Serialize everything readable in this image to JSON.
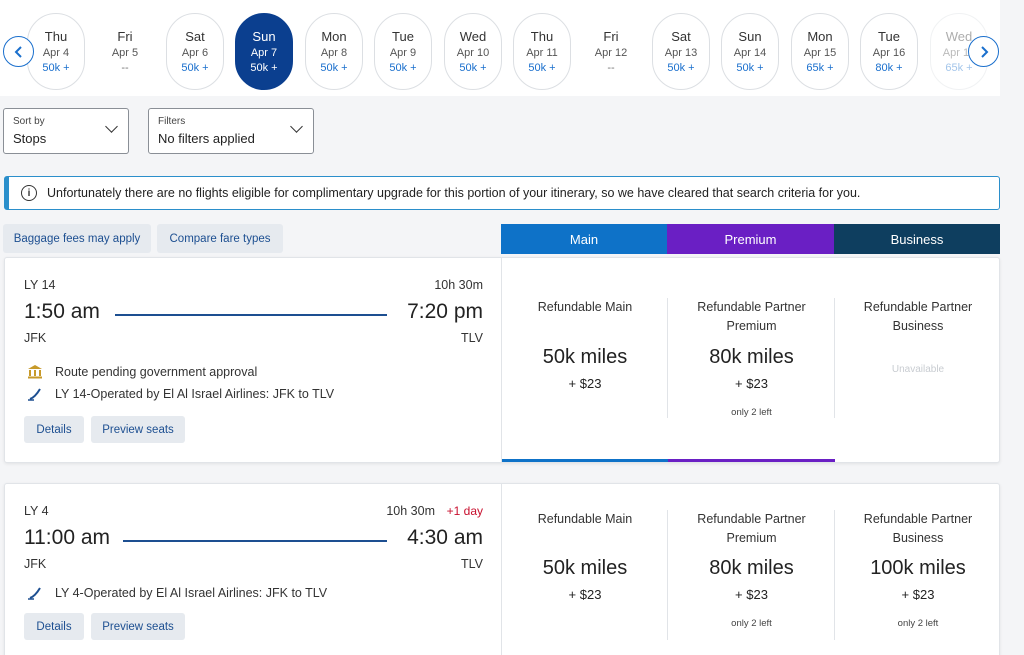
{
  "date_strip": {
    "days": [
      {
        "dow": "Thu",
        "date": "Apr 4",
        "price": "50k +"
      },
      {
        "dow": "Fri",
        "date": "Apr 5",
        "price": "--"
      },
      {
        "dow": "Sat",
        "date": "Apr 6",
        "price": "50k +"
      },
      {
        "dow": "Sun",
        "date": "Apr 7",
        "price": "50k +"
      },
      {
        "dow": "Mon",
        "date": "Apr 8",
        "price": "50k +"
      },
      {
        "dow": "Tue",
        "date": "Apr 9",
        "price": "50k +"
      },
      {
        "dow": "Wed",
        "date": "Apr 10",
        "price": "50k +"
      },
      {
        "dow": "Thu",
        "date": "Apr 11",
        "price": "50k +"
      },
      {
        "dow": "Fri",
        "date": "Apr 12",
        "price": "--"
      },
      {
        "dow": "Sat",
        "date": "Apr 13",
        "price": "50k +"
      },
      {
        "dow": "Sun",
        "date": "Apr 14",
        "price": "50k +"
      },
      {
        "dow": "Mon",
        "date": "Apr 15",
        "price": "65k +"
      },
      {
        "dow": "Tue",
        "date": "Apr 16",
        "price": "80k +"
      },
      {
        "dow": "Wed",
        "date": "Apr 17",
        "price": "65k +"
      }
    ],
    "prev_icon": "chevron-left-icon",
    "next_icon": "chevron-right-icon"
  },
  "sort": {
    "label": "Sort by",
    "value": "Stops"
  },
  "filters": {
    "label": "Filters",
    "value": "No filters applied"
  },
  "banner": {
    "icon": "info-icon",
    "text": "Unfortunately there are no flights eligible for complimentary upgrade for this portion of your itinerary, so we have cleared that search criteria for you."
  },
  "links": {
    "baggage": "Baggage fees may apply",
    "compare": "Compare fare types"
  },
  "tabs": [
    {
      "label": "Main",
      "color": "#0e72c8"
    },
    {
      "label": "Premium",
      "color": "#6a1fc4"
    },
    {
      "label": "Business",
      "color": "#0e3e5f"
    }
  ],
  "flights": [
    {
      "number": "LY 14",
      "duration": "10h 30m",
      "plus_day": "",
      "depart_time": "1:50 am",
      "arrive_time": "7:20 pm",
      "from": "JFK",
      "to": "TLV",
      "notice": "Route pending government approval",
      "operated_by": "LY 14-Operated by El Al Israel Airlines: JFK to TLV",
      "details_label": "Details",
      "seats_label": "Preview seats",
      "fares": [
        {
          "name": "Refundable Main",
          "miles": "50k miles",
          "tax": "+ $23",
          "left": "",
          "unavailable": ""
        },
        {
          "name": "Refundable Partner Premium",
          "miles": "80k miles",
          "tax": "+ $23",
          "left": "only 2 left",
          "unavailable": ""
        },
        {
          "name": "Refundable Partner Business",
          "miles": "",
          "tax": "",
          "left": "",
          "unavailable": "Unavailable"
        }
      ]
    },
    {
      "number": "LY 4",
      "duration": "10h 30m",
      "plus_day": "+1 day",
      "depart_time": "11:00 am",
      "arrive_time": "4:30 am",
      "from": "JFK",
      "to": "TLV",
      "notice": "",
      "operated_by": "LY 4-Operated by El Al Israel Airlines: JFK to TLV",
      "details_label": "Details",
      "seats_label": "Preview seats",
      "fares": [
        {
          "name": "Refundable Main",
          "miles": "50k miles",
          "tax": "+ $23",
          "left": "",
          "unavailable": ""
        },
        {
          "name": "Refundable Partner Premium",
          "miles": "80k miles",
          "tax": "+ $23",
          "left": "only 2 left",
          "unavailable": ""
        },
        {
          "name": "Refundable Partner Business",
          "miles": "100k miles",
          "tax": "+ $23",
          "left": "only 2 left",
          "unavailable": ""
        }
      ]
    }
  ]
}
